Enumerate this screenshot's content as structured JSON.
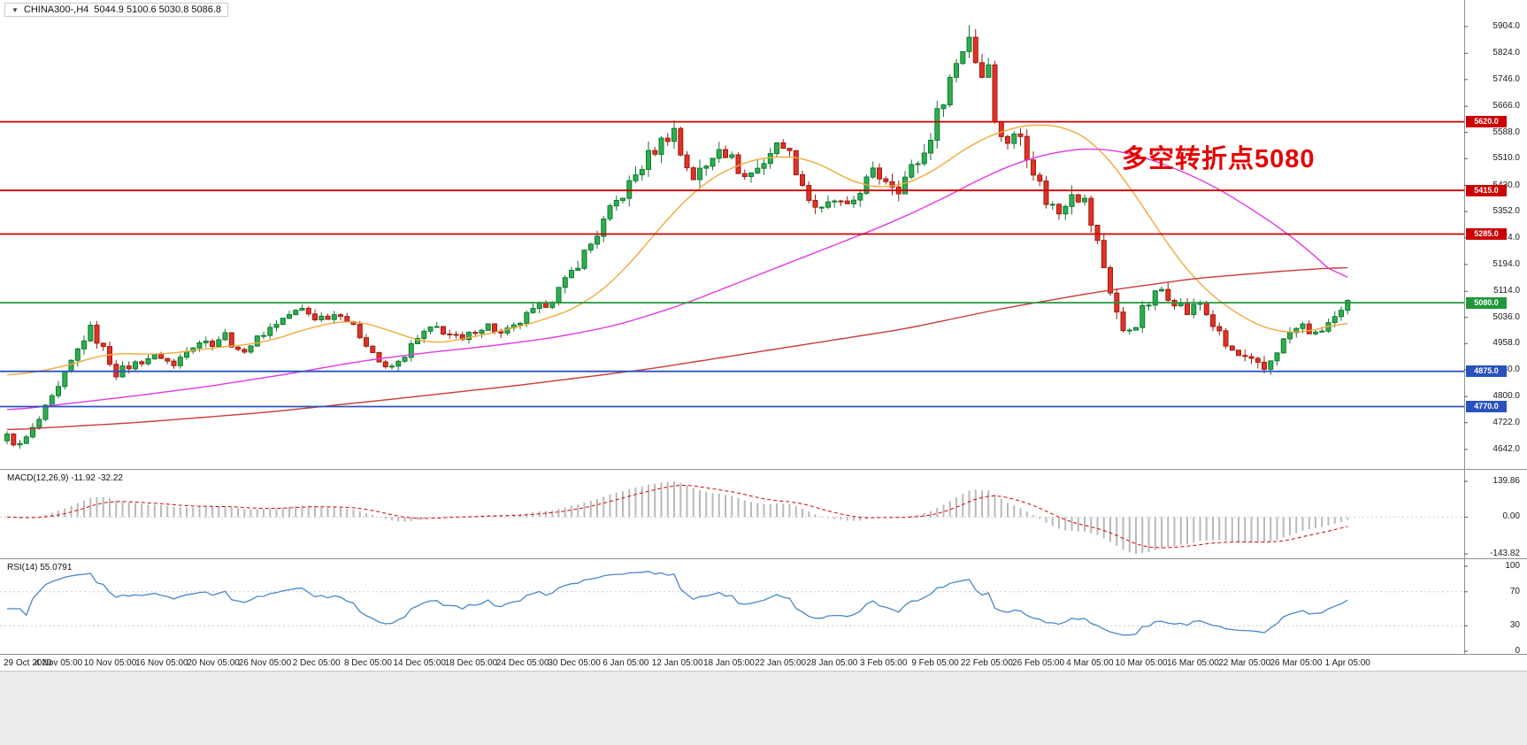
{
  "window": {
    "dropdown_icon": "▼",
    "symbol_label": "CHINA300-,H4",
    "ohlc": "5044.9 5100.6 5030.8 5086.8"
  },
  "annotation": {
    "text": "多空转折点5080",
    "color": "#e60000"
  },
  "colors": {
    "up_fill": "#2fae4e",
    "up_stroke": "#0e7a32",
    "down_fill": "#e03226",
    "down_stroke": "#9e1c12",
    "ma_fast": "#f2a93b",
    "ma_mid": "#e23ae2",
    "ma_slow": "#cc3a3a",
    "hline_red": "#cc0000",
    "hline_green": "#22963c",
    "hline_blue": "#2a52be",
    "macd_hist": "#b9b9b9",
    "macd_signal": "#d40000",
    "rsi_line": "#4a86c8",
    "panel_border": "#8f8f8f",
    "axis_text": "#1a1a1a"
  },
  "macd_panel": {
    "label": "MACD(12,26,9) -11.92 -32.22",
    "scale": [
      {
        "label": "139.86",
        "value": 139.86
      },
      {
        "label": "0.00",
        "value": 0
      },
      {
        "label": "-143.82",
        "value": -143.82
      }
    ]
  },
  "rsi_panel": {
    "label": "RSI(14) 55.0791",
    "scale": [
      {
        "label": "100",
        "value": 100
      },
      {
        "label": "70",
        "value": 70
      },
      {
        "label": "30",
        "value": 30
      },
      {
        "label": "0",
        "value": 0
      }
    ]
  },
  "chart_data": {
    "type": "candlestick",
    "symbol": "CHINA300-",
    "timeframe": "H4",
    "title": "CHINA300- H4 candlestick chart with MACD(12,26,9) and RSI(14)",
    "last_ohlc": {
      "open": 5044.9,
      "high": 5100.6,
      "low": 5030.8,
      "close": 5086.8
    },
    "y_range": [
      4642.0,
      5904.0
    ],
    "y_ticks": [
      "5904.0",
      "5824.0",
      "5746.0",
      "5666.0",
      "5588.0",
      "5510.0",
      "5430.0",
      "5352.0",
      "5274.0",
      "5194.0",
      "5114.0",
      "5036.0",
      "4958.0",
      "4880.0",
      "4800.0",
      "4722.0",
      "4642.0"
    ],
    "x_labels": [
      "29 Oct 2020",
      "4 Nov 05:00",
      "10 Nov 05:00",
      "16 Nov 05:00",
      "20 Nov 05:00",
      "26 Nov 05:00",
      "2 Dec 05:00",
      "8 Dec 05:00",
      "14 Dec 05:00",
      "18 Dec 05:00",
      "24 Dec 05:00",
      "30 Dec 05:00",
      "6 Jan 05:00",
      "12 Jan 05:00",
      "18 Jan 05:00",
      "22 Jan 05:00",
      "28 Jan 05:00",
      "3 Feb 05:00",
      "9 Feb 05:00",
      "22 Feb 05:00",
      "26 Feb 05:00",
      "4 Mar 05:00",
      "10 Mar 05:00",
      "16 Mar 05:00",
      "22 Mar 05:00",
      "26 Mar 05:00",
      "1 Apr 05:00"
    ],
    "candle_count": 210,
    "close_path_anchors": [
      [
        0,
        4680
      ],
      [
        2,
        4652
      ],
      [
        4,
        4700
      ],
      [
        6,
        4760
      ],
      [
        8,
        4820
      ],
      [
        10,
        4900
      ],
      [
        12,
        4975
      ],
      [
        13,
        5000
      ],
      [
        15,
        4940
      ],
      [
        17,
        4870
      ],
      [
        19,
        4890
      ],
      [
        22,
        4915
      ],
      [
        24,
        4920
      ],
      [
        26,
        4890
      ],
      [
        28,
        4945
      ],
      [
        30,
        4965
      ],
      [
        32,
        4960
      ],
      [
        34,
        4985
      ],
      [
        36,
        4930
      ],
      [
        38,
        4955
      ],
      [
        40,
        4990
      ],
      [
        42,
        5020
      ],
      [
        44,
        5045
      ],
      [
        46,
        5060
      ],
      [
        48,
        5035
      ],
      [
        50,
        5040
      ],
      [
        52,
        5050
      ],
      [
        54,
        5005
      ],
      [
        56,
        4960
      ],
      [
        58,
        4905
      ],
      [
        59,
        4880
      ],
      [
        61,
        4900
      ],
      [
        63,
        4950
      ],
      [
        65,
        4990
      ],
      [
        67,
        5005
      ],
      [
        69,
        4985
      ],
      [
        71,
        4965
      ],
      [
        73,
        5000
      ],
      [
        75,
        5012
      ],
      [
        77,
        4985
      ],
      [
        79,
        5005
      ],
      [
        81,
        5040
      ],
      [
        83,
        5065
      ],
      [
        85,
        5095
      ],
      [
        87,
        5140
      ],
      [
        89,
        5200
      ],
      [
        91,
        5255
      ],
      [
        93,
        5320
      ],
      [
        95,
        5380
      ],
      [
        97,
        5430
      ],
      [
        99,
        5490
      ],
      [
        101,
        5540
      ],
      [
        103,
        5580
      ],
      [
        104,
        5595
      ],
      [
        105,
        5525
      ],
      [
        107,
        5455
      ],
      [
        109,
        5485
      ],
      [
        111,
        5555
      ],
      [
        113,
        5505
      ],
      [
        115,
        5455
      ],
      [
        117,
        5480
      ],
      [
        119,
        5530
      ],
      [
        121,
        5560
      ],
      [
        123,
        5480
      ],
      [
        125,
        5390
      ],
      [
        127,
        5350
      ],
      [
        129,
        5385
      ],
      [
        131,
        5355
      ],
      [
        133,
        5420
      ],
      [
        135,
        5465
      ],
      [
        137,
        5450
      ],
      [
        139,
        5425
      ],
      [
        141,
        5480
      ],
      [
        143,
        5525
      ],
      [
        145,
        5640
      ],
      [
        147,
        5750
      ],
      [
        149,
        5840
      ],
      [
        150,
        5880
      ],
      [
        151,
        5805
      ],
      [
        152,
        5760
      ],
      [
        153,
        5815
      ],
      [
        154,
        5610
      ],
      [
        156,
        5565
      ],
      [
        158,
        5580
      ],
      [
        160,
        5480
      ],
      [
        162,
        5385
      ],
      [
        164,
        5350
      ],
      [
        166,
        5420
      ],
      [
        168,
        5380
      ],
      [
        170,
        5255
      ],
      [
        172,
        5120
      ],
      [
        174,
        4985
      ],
      [
        176,
        5025
      ],
      [
        178,
        5080
      ],
      [
        180,
        5120
      ],
      [
        182,
        5090
      ],
      [
        184,
        5050
      ],
      [
        186,
        5080
      ],
      [
        188,
        5015
      ],
      [
        190,
        4950
      ],
      [
        192,
        4920
      ],
      [
        194,
        4900
      ],
      [
        196,
        4880
      ],
      [
        198,
        4940
      ],
      [
        200,
        4990
      ],
      [
        202,
        5010
      ],
      [
        204,
        4980
      ],
      [
        206,
        5020
      ],
      [
        208,
        5045
      ],
      [
        209,
        5087
      ]
    ],
    "volatility_anchors": [
      [
        0,
        28
      ],
      [
        10,
        36
      ],
      [
        20,
        26
      ],
      [
        40,
        24
      ],
      [
        60,
        26
      ],
      [
        80,
        26
      ],
      [
        90,
        42
      ],
      [
        100,
        52
      ],
      [
        110,
        48
      ],
      [
        120,
        46
      ],
      [
        130,
        46
      ],
      [
        140,
        46
      ],
      [
        148,
        60
      ],
      [
        154,
        62
      ],
      [
        162,
        50
      ],
      [
        170,
        56
      ],
      [
        176,
        52
      ],
      [
        184,
        40
      ],
      [
        194,
        36
      ],
      [
        202,
        32
      ],
      [
        209,
        30
      ]
    ],
    "moving_averages": [
      {
        "name": "fast-orange",
        "color_key": "ma_fast",
        "anchors": [
          [
            0,
            4860
          ],
          [
            8,
            4885
          ],
          [
            16,
            4930
          ],
          [
            24,
            4925
          ],
          [
            32,
            4945
          ],
          [
            40,
            4960
          ],
          [
            48,
            5010
          ],
          [
            54,
            5030
          ],
          [
            60,
            4995
          ],
          [
            66,
            4955
          ],
          [
            72,
            4975
          ],
          [
            78,
            5000
          ],
          [
            84,
            5030
          ],
          [
            90,
            5075
          ],
          [
            96,
            5170
          ],
          [
            102,
            5310
          ],
          [
            108,
            5430
          ],
          [
            114,
            5495
          ],
          [
            120,
            5520
          ],
          [
            126,
            5505
          ],
          [
            132,
            5435
          ],
          [
            138,
            5420
          ],
          [
            144,
            5465
          ],
          [
            150,
            5550
          ],
          [
            156,
            5600
          ],
          [
            161,
            5615
          ],
          [
            166,
            5600
          ],
          [
            170,
            5550
          ],
          [
            174,
            5455
          ],
          [
            178,
            5340
          ],
          [
            182,
            5225
          ],
          [
            186,
            5130
          ],
          [
            190,
            5070
          ],
          [
            194,
            5020
          ],
          [
            198,
            4992
          ],
          [
            202,
            4990
          ],
          [
            206,
            5008
          ],
          [
            209,
            5028
          ]
        ]
      },
      {
        "name": "mid-magenta",
        "color_key": "ma_mid",
        "anchors": [
          [
            0,
            4758
          ],
          [
            10,
            4780
          ],
          [
            20,
            4802
          ],
          [
            32,
            4832
          ],
          [
            44,
            4868
          ],
          [
            55,
            4905
          ],
          [
            65,
            4930
          ],
          [
            75,
            4950
          ],
          [
            85,
            4975
          ],
          [
            95,
            5012
          ],
          [
            105,
            5072
          ],
          [
            113,
            5132
          ],
          [
            121,
            5192
          ],
          [
            129,
            5252
          ],
          [
            137,
            5312
          ],
          [
            145,
            5382
          ],
          [
            152,
            5452
          ],
          [
            158,
            5502
          ],
          [
            164,
            5532
          ],
          [
            170,
            5542
          ],
          [
            176,
            5522
          ],
          [
            182,
            5482
          ],
          [
            188,
            5430
          ],
          [
            194,
            5360
          ],
          [
            200,
            5282
          ],
          [
            205,
            5202
          ],
          [
            209,
            5128
          ]
        ]
      },
      {
        "name": "slow-red",
        "color_key": "ma_slow",
        "anchors": [
          [
            0,
            4700
          ],
          [
            20,
            4722
          ],
          [
            40,
            4752
          ],
          [
            60,
            4792
          ],
          [
            80,
            4834
          ],
          [
            100,
            4882
          ],
          [
            120,
            4942
          ],
          [
            140,
            5002
          ],
          [
            155,
            5062
          ],
          [
            170,
            5112
          ],
          [
            185,
            5152
          ],
          [
            200,
            5176
          ],
          [
            209,
            5186
          ]
        ]
      }
    ],
    "horizontal_levels": [
      {
        "price": 5620.0,
        "label": "5620.0",
        "color_key": "hline_red"
      },
      {
        "price": 5415.0,
        "label": "5415.0",
        "color_key": "hline_red"
      },
      {
        "price": 5285.0,
        "label": "5285.0",
        "color_key": "hline_red"
      },
      {
        "price": 5080.0,
        "label": "5080.0",
        "color_key": "hline_green"
      },
      {
        "price": 4875.0,
        "label": "4875.0",
        "color_key": "hline_blue"
      },
      {
        "price": 4770.0,
        "label": "4770.0",
        "color_key": "hline_blue"
      }
    ],
    "indicators": [
      {
        "name": "MACD",
        "params": [
          12,
          26,
          9
        ],
        "values_shown": [
          -11.92,
          -32.22
        ],
        "range": [
          -143.82,
          139.86
        ]
      },
      {
        "name": "RSI",
        "params": [
          14
        ],
        "value_shown": 55.0791,
        "range": [
          0,
          100
        ],
        "levels": [
          70,
          30
        ]
      }
    ]
  }
}
